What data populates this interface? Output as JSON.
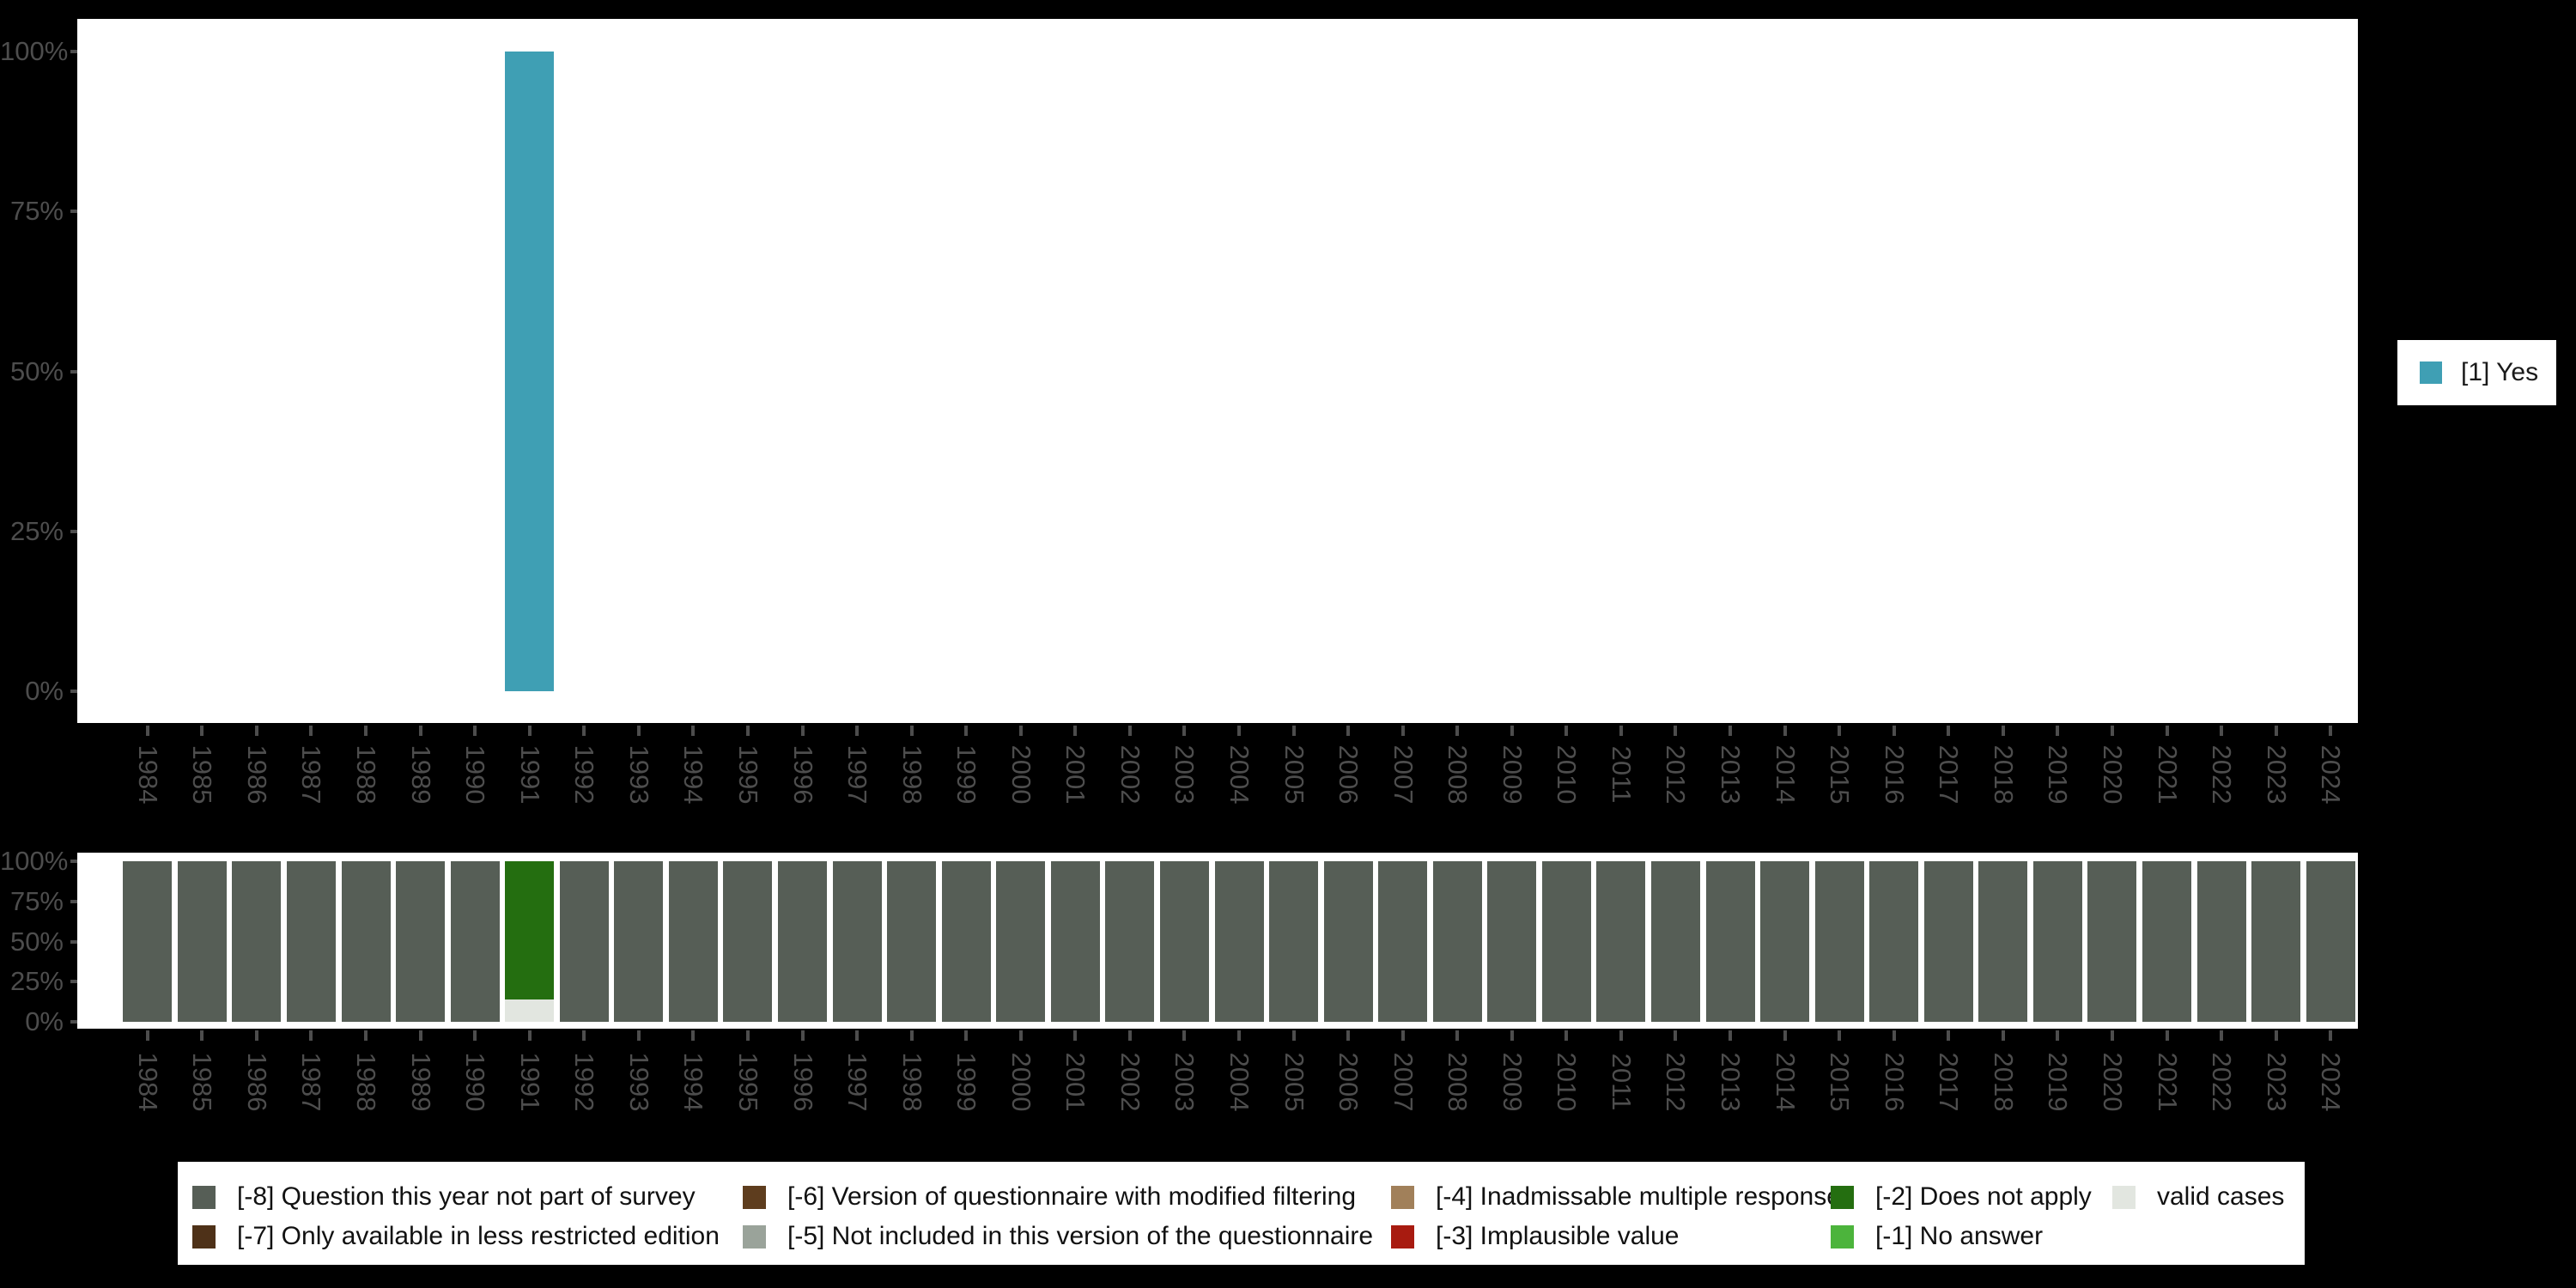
{
  "style": {
    "page_background": "#000000",
    "plot_background": "#ffffff",
    "axis_text_color": "#4d4d4d",
    "tick_color": "#4d4d4d",
    "legend_text_color": "#1a1a1a"
  },
  "chart_data": [
    {
      "type": "bar",
      "title": "",
      "xlabel": "",
      "ylabel": "",
      "stacked": true,
      "grid": false,
      "legend_position": "right",
      "yticks": [
        "0%",
        "25%",
        "50%",
        "75%",
        "100%"
      ],
      "ylim": [
        0,
        100
      ],
      "categories": [
        1984,
        1985,
        1986,
        1987,
        1988,
        1989,
        1990,
        1991,
        1992,
        1993,
        1994,
        1995,
        1996,
        1997,
        1998,
        1999,
        2000,
        2001,
        2002,
        2003,
        2004,
        2005,
        2006,
        2007,
        2008,
        2009,
        2010,
        2011,
        2012,
        2013,
        2014,
        2015,
        2016,
        2017,
        2018,
        2019,
        2020,
        2021,
        2022,
        2023,
        2024
      ],
      "series": [
        {
          "name": "[1] Yes",
          "color": "#3f9fb4",
          "values": [
            null,
            null,
            null,
            null,
            null,
            null,
            null,
            100,
            null,
            null,
            null,
            null,
            null,
            null,
            null,
            null,
            null,
            null,
            null,
            null,
            null,
            null,
            null,
            null,
            null,
            null,
            null,
            null,
            null,
            null,
            null,
            null,
            null,
            null,
            null,
            null,
            null,
            null,
            null,
            null,
            null
          ]
        }
      ]
    },
    {
      "type": "bar",
      "title": "",
      "xlabel": "",
      "ylabel": "",
      "stacked": true,
      "grid": false,
      "legend_position": "bottom",
      "yticks": [
        "0%",
        "25%",
        "50%",
        "75%",
        "100%"
      ],
      "ylim": [
        0,
        100
      ],
      "categories": [
        1984,
        1985,
        1986,
        1987,
        1988,
        1989,
        1990,
        1991,
        1992,
        1993,
        1994,
        1995,
        1996,
        1997,
        1998,
        1999,
        2000,
        2001,
        2002,
        2003,
        2004,
        2005,
        2006,
        2007,
        2008,
        2009,
        2010,
        2011,
        2012,
        2013,
        2014,
        2015,
        2016,
        2017,
        2018,
        2019,
        2020,
        2021,
        2022,
        2023,
        2024
      ],
      "series": [
        {
          "name": "[-8] Question this year not part of survey",
          "color": "#565e56",
          "values": [
            100,
            100,
            100,
            100,
            100,
            100,
            100,
            null,
            100,
            100,
            100,
            100,
            100,
            100,
            100,
            100,
            100,
            100,
            100,
            100,
            100,
            100,
            100,
            100,
            100,
            100,
            100,
            100,
            100,
            100,
            100,
            100,
            100,
            100,
            100,
            100,
            100,
            100,
            100,
            100,
            100
          ]
        },
        {
          "name": "valid cases",
          "color": "#e2e6e0",
          "values": [
            null,
            null,
            null,
            null,
            null,
            null,
            null,
            14,
            null,
            null,
            null,
            null,
            null,
            null,
            null,
            null,
            null,
            null,
            null,
            null,
            null,
            null,
            null,
            null,
            null,
            null,
            null,
            null,
            null,
            null,
            null,
            null,
            null,
            null,
            null,
            null,
            null,
            null,
            null,
            null,
            null
          ]
        },
        {
          "name": "[-2] Does not apply",
          "color": "#246e10",
          "values": [
            null,
            null,
            null,
            null,
            null,
            null,
            null,
            86,
            null,
            null,
            null,
            null,
            null,
            null,
            null,
            null,
            null,
            null,
            null,
            null,
            null,
            null,
            null,
            null,
            null,
            null,
            null,
            null,
            null,
            null,
            null,
            null,
            null,
            null,
            null,
            null,
            null,
            null,
            null,
            null,
            null
          ]
        }
      ]
    }
  ],
  "response_legend": {
    "label": "[1] Yes",
    "color": "#3f9fb4"
  },
  "missing_values_legend": {
    "items": [
      {
        "label": "[-8] Question this year not part of survey",
        "color": "#565e56",
        "row": 1,
        "col": 1
      },
      {
        "label": "[-7] Only available in less restricted edition",
        "color": "#4e3118",
        "row": 2,
        "col": 1
      },
      {
        "label": "[-6] Version of questionnaire with modified filtering",
        "color": "#5e3d1e",
        "row": 1,
        "col": 2
      },
      {
        "label": "[-5] Not included in this version of the questionnaire",
        "color": "#9aa39a",
        "row": 2,
        "col": 2
      },
      {
        "label": "[-4] Inadmissable multiple response",
        "color": "#a1805a",
        "row": 1,
        "col": 3
      },
      {
        "label": "[-3] Implausible value",
        "color": "#a81b10",
        "row": 2,
        "col": 3
      },
      {
        "label": "[-2] Does not apply",
        "color": "#246e10",
        "row": 1,
        "col": 4
      },
      {
        "label": "[-1] No answer",
        "color": "#4cb43c",
        "row": 2,
        "col": 4
      },
      {
        "label": "valid cases",
        "color": "#e2e6e0",
        "row": 1,
        "col": 5
      }
    ]
  }
}
